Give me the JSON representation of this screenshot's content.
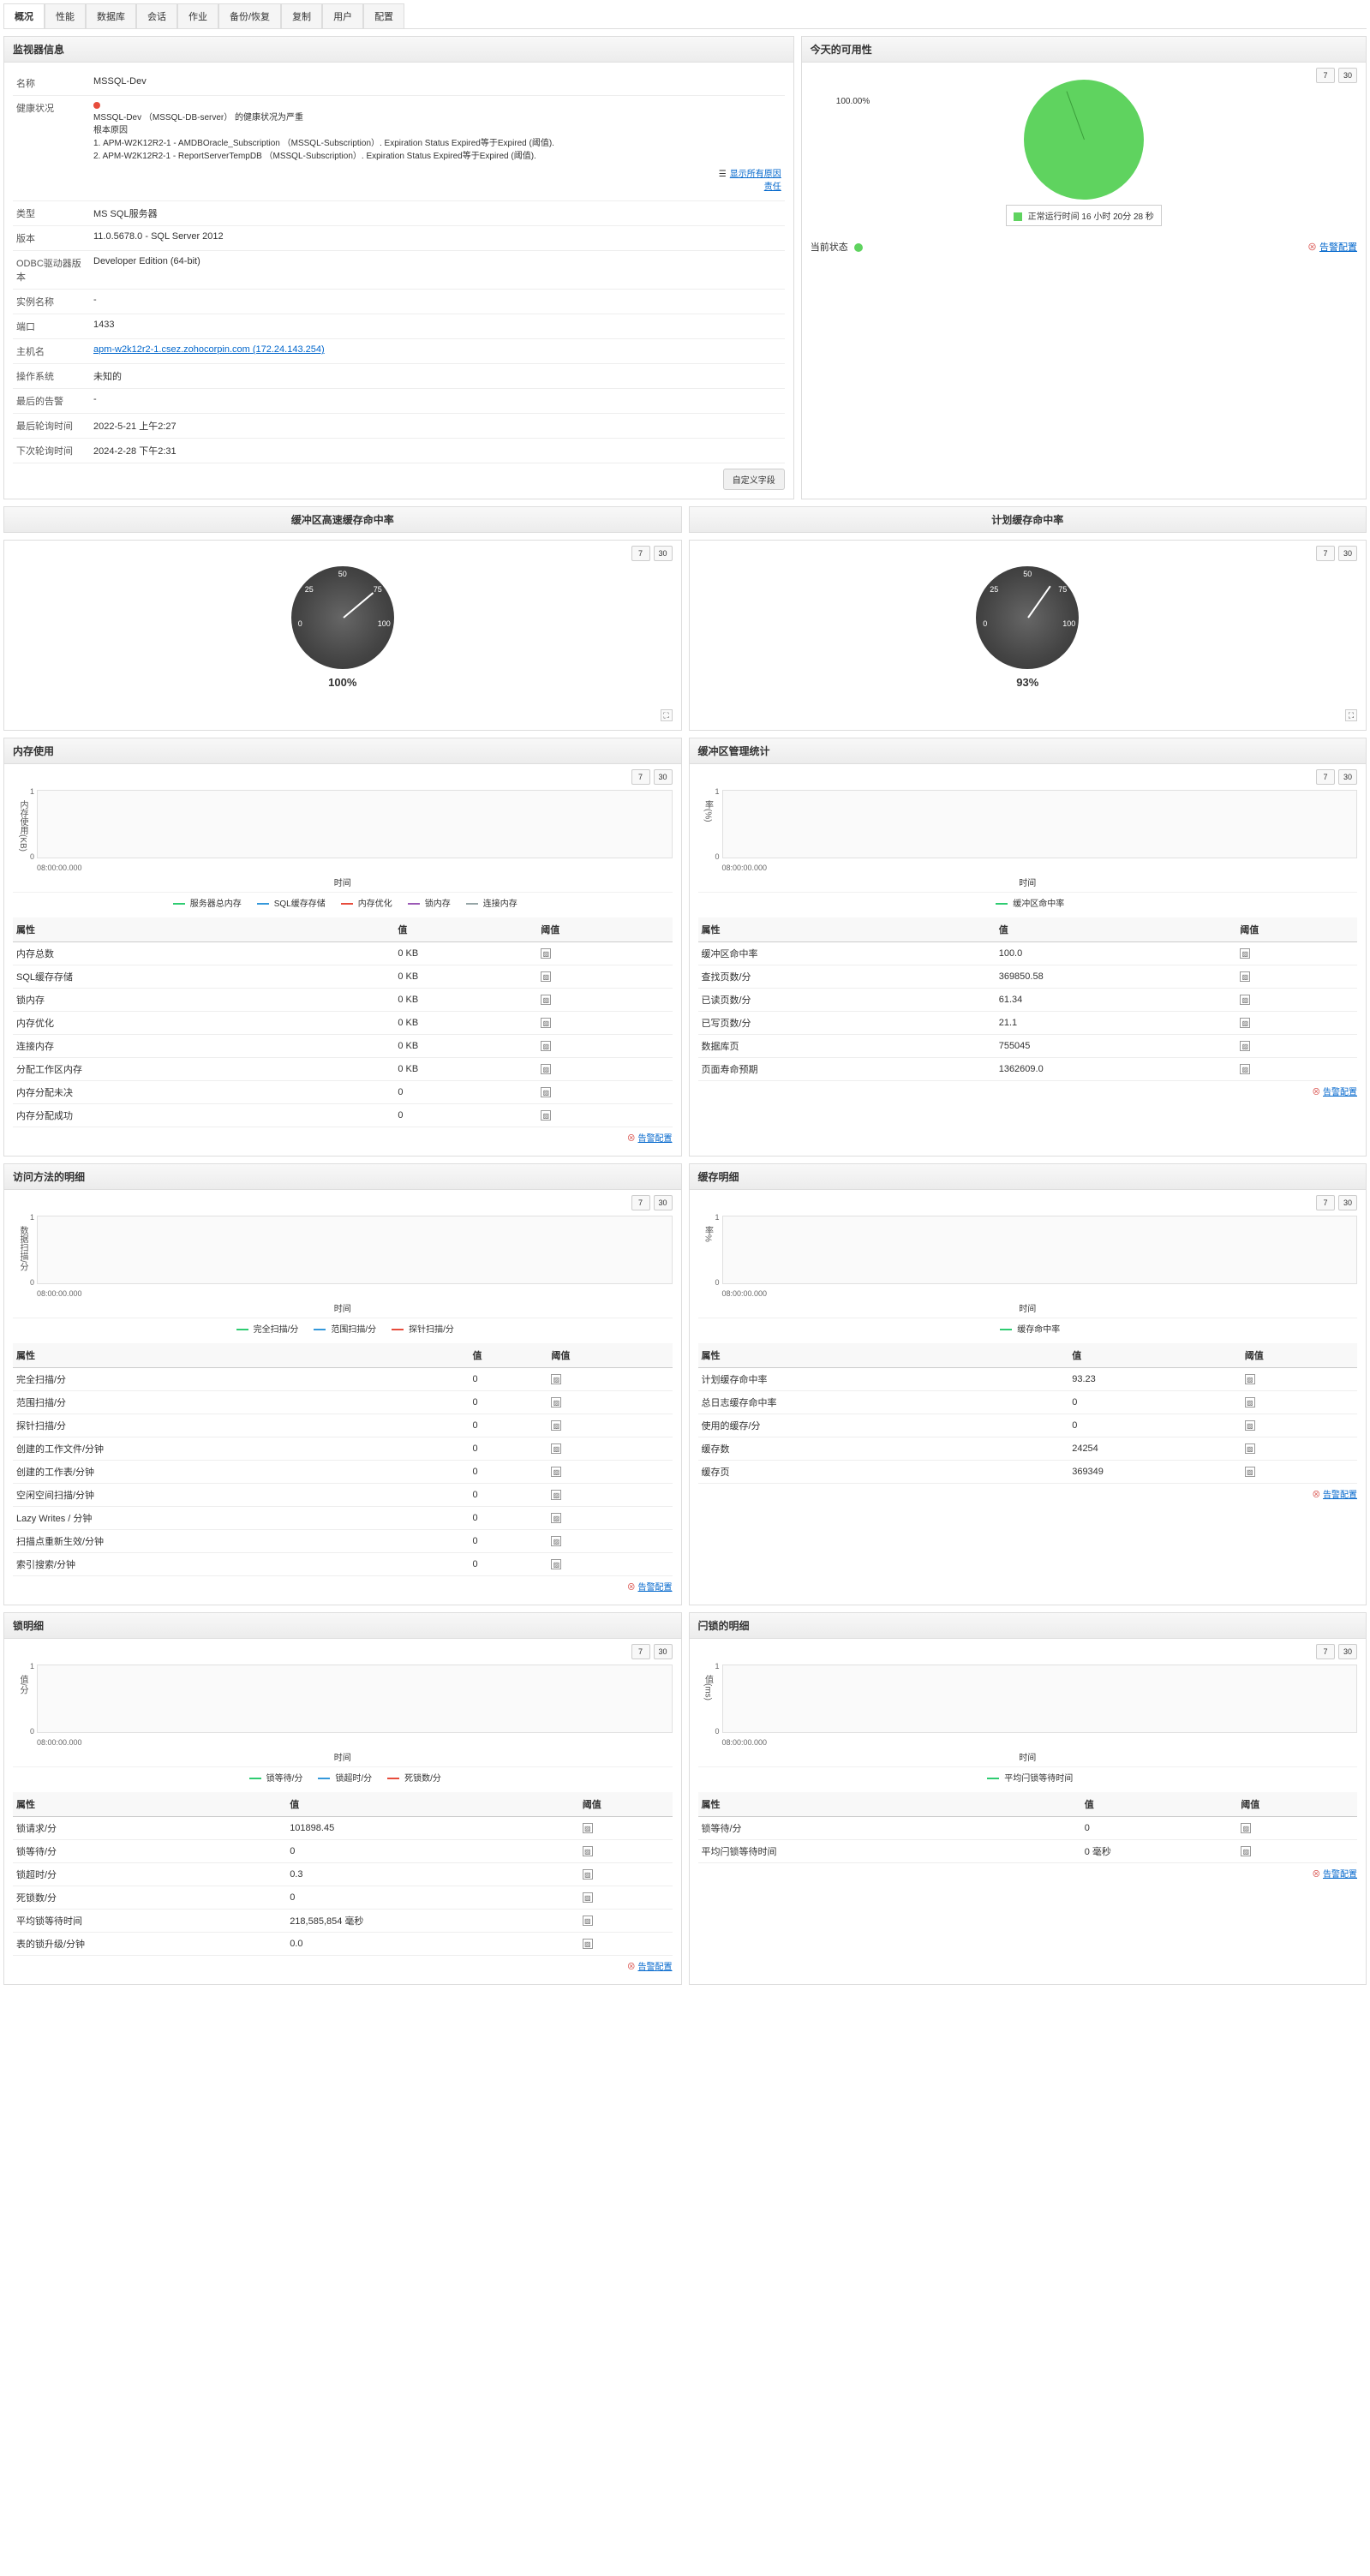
{
  "tabs": [
    "概况",
    "性能",
    "数据库",
    "会话",
    "作业",
    "备份/恢复",
    "复制",
    "用户",
    "配置"
  ],
  "activeTab": 0,
  "monitorInfo": {
    "title": "监视器信息",
    "rows": {
      "name_label": "名称",
      "name_val": "MSSQL-Dev",
      "health_label": "健康状况",
      "health_text1": "MSSQL-Dev （MSSQL-DB-server） 的健康状况为严重",
      "health_text2": "根本原因",
      "health_text3": "1. APM-W2K12R2-1 - AMDBOracle_Subscription （MSSQL-Subscription）. Expiration Status Expired等于Expired (阈值).",
      "health_text4": "2. APM-W2K12R2-1 - ReportServerTempDB （MSSQL-Subscription）. Expiration Status Expired等于Expired (阈值).",
      "show_all": "显示所有原因",
      "responsibility": "责任",
      "type_label": "类型",
      "type_val": "MS SQL服务器",
      "version_label": "版本",
      "version_val": "11.0.5678.0 - SQL Server 2012",
      "odbc_label": "ODBC驱动器版本",
      "odbc_val": "Developer Edition (64-bit)",
      "instance_label": "实例名称",
      "instance_val": "-",
      "port_label": "端口",
      "port_val": "1433",
      "host_label": "主机名",
      "host_val": "apm-w2k12r2-1.csez.zohocorpin.com (172.24.143.254)",
      "os_label": "操作系统",
      "os_val": "未知的",
      "last_alarm_label": "最后的告警",
      "last_alarm_val": "-",
      "last_poll_label": "最后轮询时间",
      "last_poll_val": "2022-5-21 上午2:27",
      "next_poll_label": "下次轮询时间",
      "next_poll_val": "2024-2-28 下午2:31"
    },
    "custom_btn": "自定义字段"
  },
  "availability": {
    "title": "今天的可用性",
    "percent": "100.00%",
    "legend": "正常运行时间 16 小时 20分 28 秒",
    "legend_color": "#5fd35f",
    "status_label": "当前状态",
    "config": "告警配置"
  },
  "bufferCache": {
    "title": "缓冲区高速缓存命中率",
    "value": "100%",
    "gauge_value": 100
  },
  "planCache": {
    "title": "计划缓存命中率",
    "value": "93%",
    "gauge_value": 93
  },
  "memoryUsage": {
    "title": "内存使用",
    "y_label": "内存使用(KB)",
    "x_label": "时间",
    "x_start": "08:00:00.000",
    "legends": [
      {
        "label": "服务器总内存",
        "color": "#2ecc71"
      },
      {
        "label": "SQL缓存存储",
        "color": "#3498db"
      },
      {
        "label": "内存优化",
        "color": "#e74c3c"
      },
      {
        "label": "锁内存",
        "color": "#9b59b6"
      },
      {
        "label": "连接内存",
        "color": "#95a5a6"
      }
    ],
    "th_attr": "属性",
    "th_val": "值",
    "th_thresh": "阈值",
    "rows": [
      {
        "attr": "内存总数",
        "val": "0 KB"
      },
      {
        "attr": "SQL缓存存储",
        "val": "0 KB"
      },
      {
        "attr": "锁内存",
        "val": "0 KB"
      },
      {
        "attr": "内存优化",
        "val": "0 KB"
      },
      {
        "attr": "连接内存",
        "val": "0 KB"
      },
      {
        "attr": "分配工作区内存",
        "val": "0 KB"
      },
      {
        "attr": "内存分配未决",
        "val": "0"
      },
      {
        "attr": "内存分配成功",
        "val": "0"
      }
    ],
    "config": "告警配置"
  },
  "bufferMgr": {
    "title": "缓冲区管理统计",
    "y_label": "率(%)",
    "x_label": "时间",
    "x_start": "08:00:00.000",
    "legends": [
      {
        "label": "缓冲区命中率",
        "color": "#2ecc71"
      }
    ],
    "th_attr": "属性",
    "th_val": "值",
    "th_thresh": "阈值",
    "rows": [
      {
        "attr": "缓冲区命中率",
        "val": "100.0"
      },
      {
        "attr": "查找页数/分",
        "val": "369850.58"
      },
      {
        "attr": "已读页数/分",
        "val": "61.34"
      },
      {
        "attr": "已写页数/分",
        "val": "21.1"
      },
      {
        "attr": "数据库页",
        "val": "755045"
      },
      {
        "attr": "页面寿命预期",
        "val": "1362609.0"
      }
    ],
    "config": "告警配置"
  },
  "accessMethods": {
    "title": "访问方法的明细",
    "y_label": "数据扫描/分",
    "x_label": "时间",
    "x_start": "08:00:00.000",
    "legends": [
      {
        "label": "完全扫描/分",
        "color": "#2ecc71"
      },
      {
        "label": "范围扫描/分",
        "color": "#3498db"
      },
      {
        "label": "探针扫描/分",
        "color": "#e74c3c"
      }
    ],
    "th_attr": "属性",
    "th_val": "值",
    "th_thresh": "阈值",
    "rows": [
      {
        "attr": "完全扫描/分",
        "val": "0"
      },
      {
        "attr": "范围扫描/分",
        "val": "0"
      },
      {
        "attr": "探针扫描/分",
        "val": "0"
      },
      {
        "attr": "创建的工作文件/分钟",
        "val": "0"
      },
      {
        "attr": "创建的工作表/分钟",
        "val": "0"
      },
      {
        "attr": "空闲空间扫描/分钟",
        "val": "0"
      },
      {
        "attr": "Lazy Writes / 分钟",
        "val": "0"
      },
      {
        "attr": "扫描点重新生效/分钟",
        "val": "0"
      },
      {
        "attr": "索引搜索/分钟",
        "val": "0"
      }
    ],
    "config": "告警配置"
  },
  "cacheDetails": {
    "title": "缓存明细",
    "y_label": "率%",
    "x_label": "时间",
    "x_start": "08:00:00.000",
    "legends": [
      {
        "label": "缓存命中率",
        "color": "#2ecc71"
      }
    ],
    "th_attr": "属性",
    "th_val": "值",
    "th_thresh": "阈值",
    "rows": [
      {
        "attr": "计划缓存命中率",
        "val": "93.23"
      },
      {
        "attr": "总日志缓存命中率",
        "val": "0"
      },
      {
        "attr": "使用的缓存/分",
        "val": "0"
      },
      {
        "attr": "缓存数",
        "val": "24254"
      },
      {
        "attr": "缓存页",
        "val": "369349"
      }
    ],
    "config": "告警配置"
  },
  "lockDetails": {
    "title": "锁明细",
    "y_label": "值/分",
    "x_label": "时间",
    "x_start": "08:00:00.000",
    "legends": [
      {
        "label": "锁等待/分",
        "color": "#2ecc71"
      },
      {
        "label": "锁超时/分",
        "color": "#3498db"
      },
      {
        "label": "死锁数/分",
        "color": "#e74c3c"
      }
    ],
    "th_attr": "属性",
    "th_val": "值",
    "th_thresh": "阈值",
    "rows": [
      {
        "attr": "锁请求/分",
        "val": "101898.45"
      },
      {
        "attr": "锁等待/分",
        "val": "0"
      },
      {
        "attr": "锁超时/分",
        "val": "0.3"
      },
      {
        "attr": "死锁数/分",
        "val": "0"
      },
      {
        "attr": "平均锁等待时间",
        "val": "218,585,854 毫秒"
      },
      {
        "attr": "表的锁升级/分钟",
        "val": "0.0"
      }
    ],
    "config": "告警配置"
  },
  "latchDetails": {
    "title": "闩锁的明细",
    "y_label": "值(ms)",
    "x_label": "时间",
    "x_start": "08:00:00.000",
    "legends": [
      {
        "label": "平均闩锁等待时间",
        "color": "#2ecc71"
      }
    ],
    "th_attr": "属性",
    "th_val": "值",
    "th_thresh": "阈值",
    "rows": [
      {
        "attr": "锁等待/分",
        "val": "0"
      },
      {
        "attr": "平均闩锁等待时间",
        "val": "0 毫秒"
      }
    ],
    "config": "告警配置"
  },
  "btns": {
    "t7": "7",
    "t30": "30"
  }
}
